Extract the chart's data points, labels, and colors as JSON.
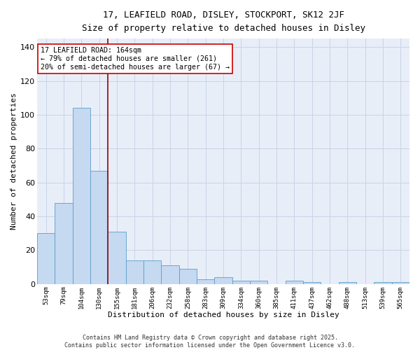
{
  "title_line1": "17, LEAFIELD ROAD, DISLEY, STOCKPORT, SK12 2JF",
  "title_line2": "Size of property relative to detached houses in Disley",
  "xlabel": "Distribution of detached houses by size in Disley",
  "ylabel": "Number of detached properties",
  "categories": [
    "53sqm",
    "79sqm",
    "104sqm",
    "130sqm",
    "155sqm",
    "181sqm",
    "206sqm",
    "232sqm",
    "258sqm",
    "283sqm",
    "309sqm",
    "334sqm",
    "360sqm",
    "385sqm",
    "411sqm",
    "437sqm",
    "462sqm",
    "488sqm",
    "513sqm",
    "539sqm",
    "565sqm"
  ],
  "values": [
    30,
    48,
    104,
    67,
    31,
    14,
    14,
    11,
    9,
    3,
    4,
    2,
    2,
    0,
    2,
    1,
    0,
    1,
    0,
    1,
    1
  ],
  "bar_color": "#c5d9f1",
  "bar_edge_color": "#5a9ec9",
  "annotation_text": "17 LEAFIELD ROAD: 164sqm\n← 79% of detached houses are smaller (261)\n20% of semi-detached houses are larger (67) →",
  "vline_x": 3.5,
  "vline_color": "#990000",
  "ylim": [
    0,
    145
  ],
  "yticks": [
    0,
    20,
    40,
    60,
    80,
    100,
    120,
    140
  ],
  "grid_color": "#c8d4e8",
  "bg_color": "#e8eef8",
  "footer_text": "Contains HM Land Registry data © Crown copyright and database right 2025.\nContains public sector information licensed under the Open Government Licence v3.0.",
  "n_bars": 21
}
